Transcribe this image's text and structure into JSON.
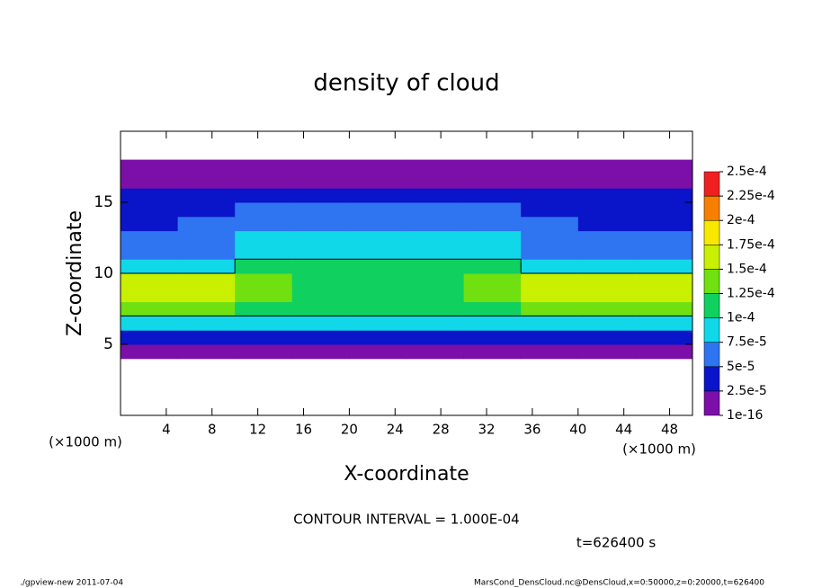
{
  "chart_data": {
    "type": "heatmap",
    "title": "density of cloud",
    "x_label": "X-coordinate",
    "y_label": "Z-coordinate",
    "x_unit": "(×1000 m)",
    "y_unit": "(×1000 m)",
    "xlim": [
      0,
      50
    ],
    "ylim": [
      0,
      20
    ],
    "xticks": [
      4,
      8,
      12,
      16,
      20,
      24,
      28,
      32,
      36,
      40,
      44,
      48
    ],
    "yticks": [
      5,
      10,
      15
    ],
    "x": [
      2.5,
      7.5,
      12.5,
      17.5,
      22.5,
      27.5,
      32.5,
      37.5,
      42.5,
      47.5
    ],
    "y": [
      0.5,
      1.5,
      2.5,
      3.5,
      4.5,
      5.5,
      6.5,
      7.5,
      8.5,
      9.5,
      10.5,
      11.5,
      12.5,
      13.5,
      14.5,
      15.5,
      16.5,
      17.5,
      18.5,
      19.5
    ],
    "values": [
      [
        null,
        null,
        null,
        null,
        null,
        null,
        null,
        null,
        null,
        null
      ],
      [
        null,
        null,
        null,
        null,
        null,
        null,
        null,
        null,
        null,
        null
      ],
      [
        null,
        null,
        null,
        null,
        null,
        null,
        null,
        null,
        null,
        null
      ],
      [
        null,
        null,
        null,
        null,
        null,
        null,
        null,
        null,
        null,
        null
      ],
      [
        1e-06,
        1e-06,
        1e-06,
        1e-06,
        1e-06,
        1e-06,
        1e-06,
        1e-06,
        1e-06,
        1e-06
      ],
      [
        3e-05,
        3e-05,
        3e-05,
        3e-05,
        3e-05,
        3e-05,
        3e-05,
        3e-05,
        3e-05,
        3e-05
      ],
      [
        8e-05,
        8e-05,
        8e-05,
        8e-05,
        8e-05,
        8e-05,
        8e-05,
        8e-05,
        8e-05,
        8e-05
      ],
      [
        0.00014,
        0.00014,
        0.00011,
        0.000105,
        0.000105,
        0.000105,
        0.00011,
        0.00014,
        0.00014,
        0.00014
      ],
      [
        0.00017,
        0.00016,
        0.00013,
        0.00012,
        0.00012,
        0.00012,
        0.00013,
        0.00016,
        0.00017,
        0.00017
      ],
      [
        0.00016,
        0.00015,
        0.000125,
        0.00012,
        0.00012,
        0.00012,
        0.000125,
        0.00015,
        0.00016,
        0.00016
      ],
      [
        9e-05,
        9e-05,
        0.000105,
        0.00011,
        0.00011,
        0.00011,
        0.000105,
        9e-05,
        9e-05,
        9e-05
      ],
      [
        6e-05,
        6.5e-05,
        9e-05,
        9.5e-05,
        9.5e-05,
        9.5e-05,
        9e-05,
        6.5e-05,
        6e-05,
        6e-05
      ],
      [
        5e-05,
        5.5e-05,
        8e-05,
        8e-05,
        8e-05,
        8e-05,
        7.5e-05,
        5.5e-05,
        5e-05,
        5e-05
      ],
      [
        4.5e-05,
        5e-05,
        6e-05,
        6e-05,
        6e-05,
        6e-05,
        6e-05,
        5e-05,
        4.5e-05,
        4.5e-05
      ],
      [
        4e-05,
        4e-05,
        5e-05,
        5e-05,
        5e-05,
        5e-05,
        5e-05,
        4e-05,
        4e-05,
        4e-05
      ],
      [
        3.5e-05,
        3.5e-05,
        3.5e-05,
        3.5e-05,
        3.5e-05,
        3.5e-05,
        3.5e-05,
        3.5e-05,
        3.5e-05,
        3.5e-05
      ],
      [
        1.5e-05,
        1.5e-05,
        1.5e-05,
        1.5e-05,
        1.5e-05,
        1.5e-05,
        1.5e-05,
        1.5e-05,
        1.5e-05,
        1.5e-05
      ],
      [
        1e-06,
        1e-06,
        1e-06,
        1e-06,
        1e-06,
        1e-06,
        1e-06,
        1e-06,
        1e-06,
        1e-06
      ],
      [
        null,
        null,
        null,
        null,
        null,
        null,
        null,
        null,
        null,
        null
      ],
      [
        null,
        null,
        null,
        null,
        null,
        null,
        null,
        null,
        null,
        null
      ]
    ],
    "levels": [
      {
        "value": 1e-16,
        "label": "1e-16"
      },
      {
        "value": 2.5e-05,
        "label": "2.5e-5"
      },
      {
        "value": 5e-05,
        "label": "5e-5"
      },
      {
        "value": 7.5e-05,
        "label": "7.5e-5"
      },
      {
        "value": 0.0001,
        "label": "1e-4"
      },
      {
        "value": 0.000125,
        "label": "1.25e-4"
      },
      {
        "value": 0.00015,
        "label": "1.5e-4"
      },
      {
        "value": 0.000175,
        "label": "1.75e-4"
      },
      {
        "value": 0.0002,
        "label": "2e-4"
      },
      {
        "value": 0.000225,
        "label": "2.25e-4"
      },
      {
        "value": 0.00025,
        "label": "2.5e-4"
      }
    ],
    "colors": [
      "#7b0fa8",
      "#0a14c8",
      "#2f74f0",
      "#10d8e8",
      "#10d060",
      "#70e010",
      "#c8f000",
      "#f8e800",
      "#f88000",
      "#f02020"
    ],
    "contour_interval": {
      "value": 0.0001,
      "label": "CONTOUR INTERVAL = 1.000E-04"
    },
    "time_label": "t=626400 s",
    "footer_left": "./gpview-new   2011-07-04",
    "footer_right": "MarsCond_DensCloud.nc@DensCloud,x=0:50000,z=0:20000,t=626400"
  }
}
